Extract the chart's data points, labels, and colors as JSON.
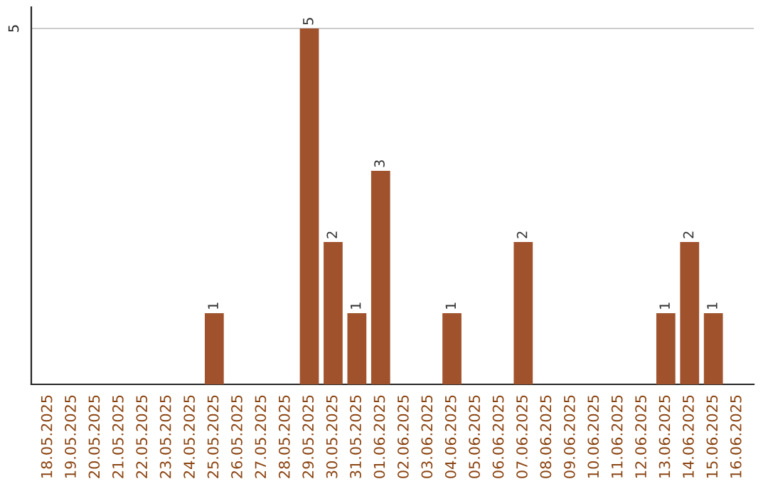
{
  "chart_data": {
    "type": "bar",
    "categories": [
      "18.05.2025",
      "19.05.2025",
      "20.05.2025",
      "21.05.2025",
      "22.05.2025",
      "23.05.2025",
      "24.05.2025",
      "25.05.2025",
      "26.05.2025",
      "27.05.2025",
      "28.05.2025",
      "29.05.2025",
      "30.05.2025",
      "31.05.2025",
      "01.06.2025",
      "02.06.2025",
      "03.06.2025",
      "04.06.2025",
      "05.06.2025",
      "06.06.2025",
      "07.06.2025",
      "08.06.2025",
      "09.06.2025",
      "10.06.2025",
      "11.06.2025",
      "12.06.2025",
      "13.06.2025",
      "14.06.2025",
      "15.06.2025",
      "16.06.2025"
    ],
    "values": [
      null,
      null,
      null,
      null,
      null,
      null,
      null,
      1,
      null,
      null,
      null,
      5,
      2,
      1,
      3,
      null,
      null,
      1,
      null,
      null,
      2,
      null,
      null,
      null,
      null,
      null,
      1,
      2,
      1,
      null
    ],
    "value_labels": [
      null,
      null,
      null,
      null,
      null,
      null,
      null,
      "1",
      null,
      null,
      null,
      "5",
      "2",
      "1",
      "3",
      null,
      null,
      "1",
      null,
      null,
      "2",
      null,
      null,
      null,
      null,
      null,
      "1",
      "2",
      "1",
      null
    ],
    "color": "#a0522d",
    "ylim": [
      0,
      5.3
    ],
    "yticks": [
      5
    ],
    "grid": "y"
  }
}
